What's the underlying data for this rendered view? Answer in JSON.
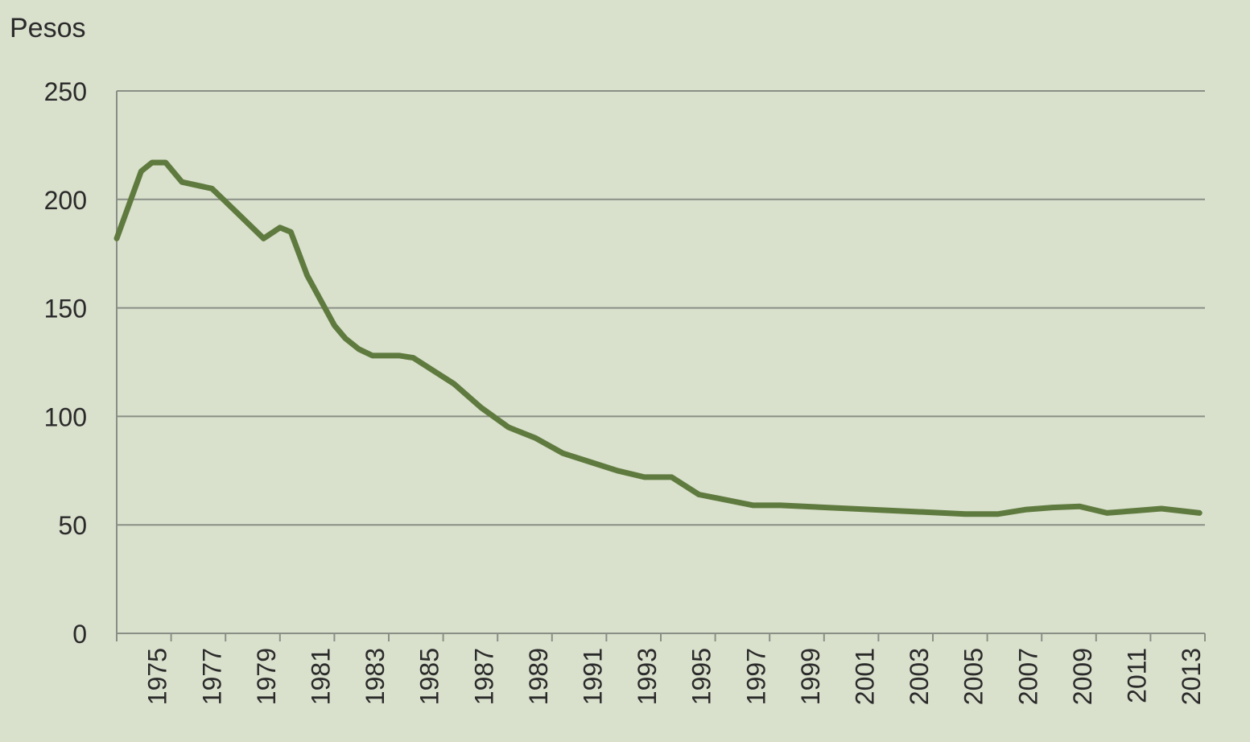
{
  "chart_data": {
    "type": "line",
    "ylabel": "Pesos",
    "ylim": [
      0,
      250
    ],
    "yticks": [
      0,
      50,
      100,
      150,
      200,
      250
    ],
    "xlim": [
      1974,
      2014
    ],
    "xtick_labels": [
      "1975",
      "1977",
      "1979",
      "1981",
      "1983",
      "1985",
      "1987",
      "1989",
      "1991",
      "1993",
      "1995",
      "1997",
      "1999",
      "2001",
      "2003",
      "2005",
      "2007",
      "2009",
      "2011",
      "2013"
    ],
    "grid": true,
    "line_color": "#5f7a3e",
    "background_color": "#d9e0cc",
    "x": [
      1974,
      1974.9,
      1975.3,
      1975.8,
      1976.4,
      1977.5,
      1978,
      1979.4,
      1980,
      1980.4,
      1981,
      1982,
      1982.4,
      1982.9,
      1983.4,
      1984.4,
      1984.9,
      1985.9,
      1986.4,
      1987.4,
      1988.4,
      1989.4,
      1990.4,
      1991.4,
      1992.4,
      1993.4,
      1994.4,
      1995.4,
      1997.4,
      1998.4,
      2005.2,
      2006.4,
      2007.4,
      2008.4,
      2009.4,
      2010.4,
      2011.4,
      2012.4,
      2013.8
    ],
    "y": [
      182,
      213,
      217,
      217,
      208,
      205,
      199,
      182,
      187,
      185,
      165,
      142,
      136,
      131,
      128,
      128,
      127,
      119,
      115,
      104,
      95,
      90,
      83,
      79,
      75,
      72,
      72,
      64,
      59,
      59,
      55,
      55,
      57,
      58,
      58.5,
      55.5,
      56.5,
      57.5,
      55.5
    ]
  }
}
